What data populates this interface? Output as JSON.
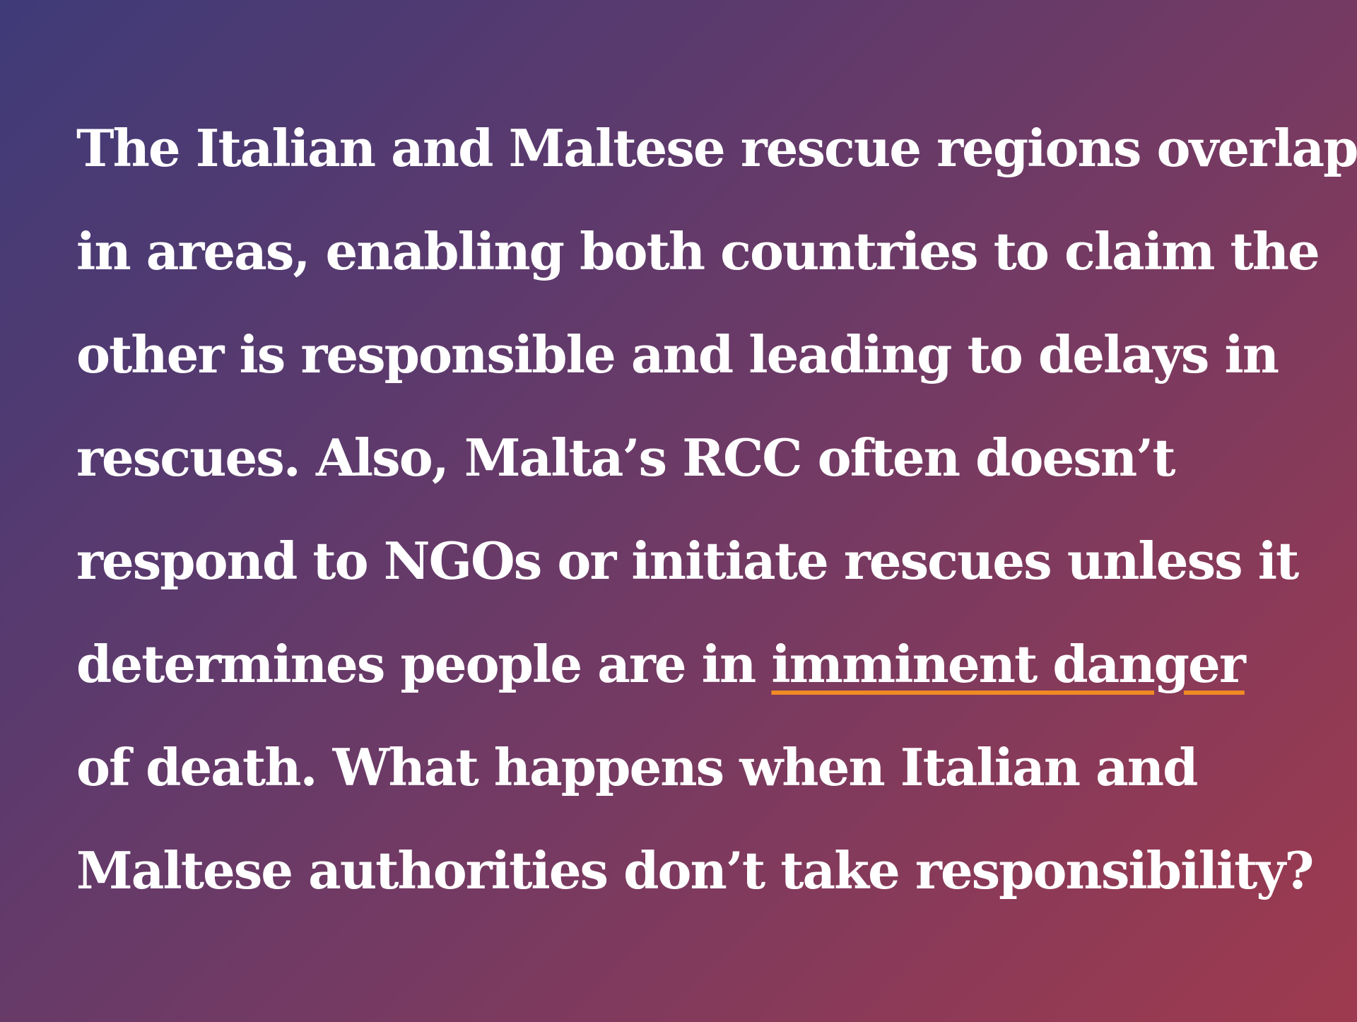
{
  "paragraph": {
    "lines": [
      "The Italian and Maltese rescue regions overlap",
      "in areas, enabling both countries to claim the",
      "other is responsible and leading to delays in",
      "rescues. Also, Malta’s RCC often doesn’t",
      "respond to NGOs or initiate rescues unless it"
    ],
    "line6_prefix": "determines people are in ",
    "link_text": "imminent danger",
    "lines_after": [
      "of death. What happens when Italian and",
      "Maltese authorities don’t take responsibility?"
    ]
  },
  "colors": {
    "background_start": "#3f3b78",
    "background_end": "#9e3a4f",
    "text": "#ffffff",
    "link_underline": "#f08a24"
  }
}
